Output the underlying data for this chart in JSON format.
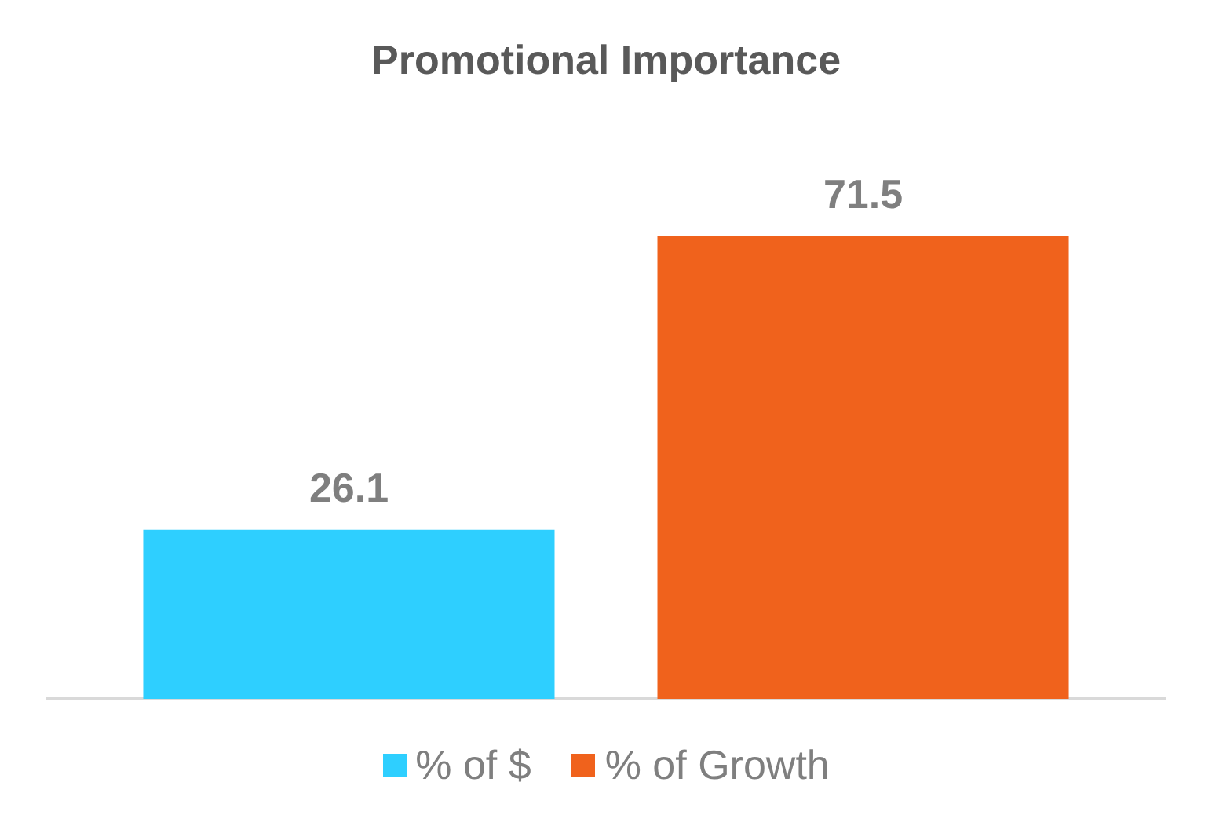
{
  "chart_data": {
    "type": "bar",
    "title": "Promotional Importance",
    "categories": [
      null
    ],
    "series": [
      {
        "name": "% of $",
        "color": "#2ecfff",
        "values": [
          26.1
        ]
      },
      {
        "name": "% of Growth",
        "color": "#f0621c",
        "values": [
          71.5
        ]
      }
    ],
    "data_labels": true,
    "legend": "bottom",
    "grid": false
  }
}
